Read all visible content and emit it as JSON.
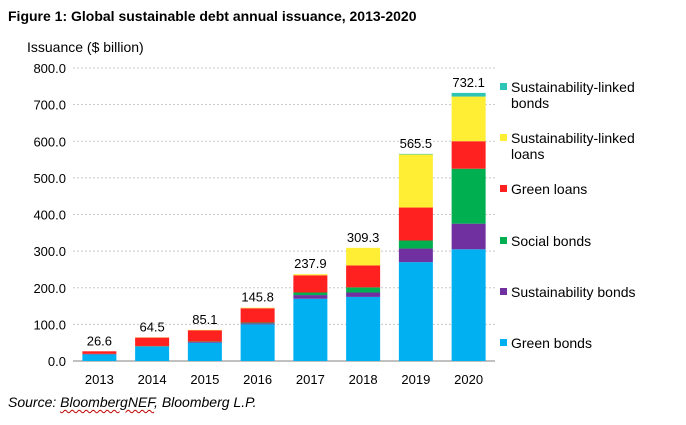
{
  "figure_title": "Figure 1: Global sustainable debt annual issuance, 2013-2020",
  "source": {
    "prefix": "Source: ",
    "brand": "BloombergNEF",
    "suffix": ", Bloomberg L.P."
  },
  "chart_data": {
    "type": "bar",
    "stacked": true,
    "ylabel": "Issuance ($ billion)",
    "xlabel": "",
    "ylim": [
      0,
      800
    ],
    "yticks": [
      "0.0",
      "100.0",
      "200.0",
      "300.0",
      "400.0",
      "500.0",
      "600.0",
      "700.0",
      "800.0"
    ],
    "grid": true,
    "legend_position": "right",
    "categories": [
      "2013",
      "2014",
      "2015",
      "2016",
      "2017",
      "2018",
      "2019",
      "2020"
    ],
    "totals": [
      "26.6",
      "64.5",
      "85.1",
      "145.8",
      "237.9",
      "309.3",
      "565.5",
      "732.1"
    ],
    "series": [
      {
        "name": "Green bonds",
        "color": "#00b0f0",
        "values": [
          18,
          39,
          50,
          100,
          170,
          175,
          270,
          305
        ]
      },
      {
        "name": "Sustainability bonds",
        "color": "#7030a0",
        "values": [
          1,
          1,
          2,
          3,
          10,
          12,
          37,
          70
        ]
      },
      {
        "name": "Social bonds",
        "color": "#00b050",
        "values": [
          0.5,
          1,
          1,
          2,
          7,
          14,
          22,
          150
        ]
      },
      {
        "name": "Green loans",
        "color": "#ff2020",
        "values": [
          7,
          23,
          31,
          39,
          47,
          60,
          90,
          75
        ]
      },
      {
        "name": "Sustainability-linked loans",
        "color": "#ffee33",
        "values": [
          0,
          0.5,
          1,
          1.5,
          3,
          48,
          145,
          122
        ]
      },
      {
        "name": "Sustainability-linked bonds",
        "color": "#2ec4b6",
        "values": [
          0,
          0,
          0,
          0,
          0,
          0,
          1.5,
          10
        ]
      }
    ],
    "legend_labels": [
      [
        "Sustainability-linked",
        "bonds"
      ],
      [
        "Sustainability-linked",
        "loans"
      ],
      [
        "Green loans"
      ],
      [
        "Social bonds"
      ],
      [
        "Sustainability bonds"
      ],
      [
        "Green bonds"
      ]
    ]
  }
}
